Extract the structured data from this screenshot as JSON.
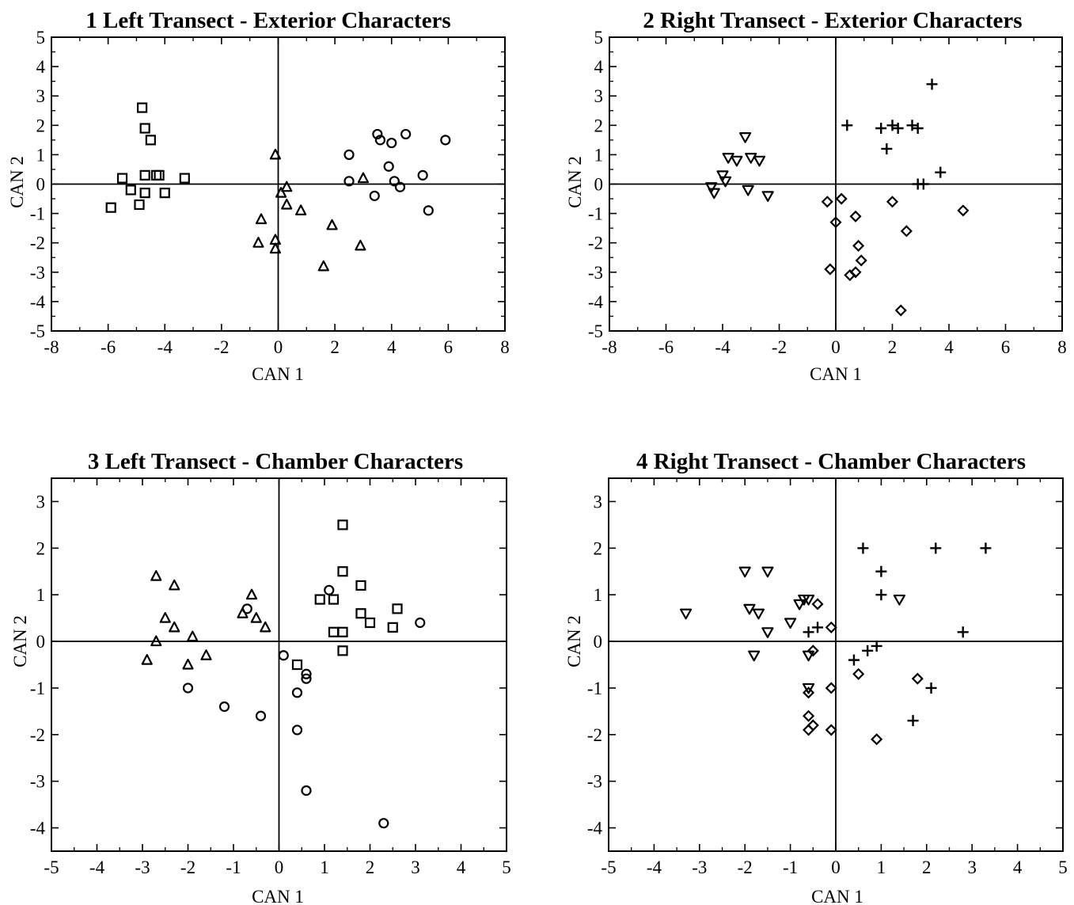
{
  "chart_data": [
    {
      "type": "scatter",
      "title": "1  Left Transect - Exterior Characters",
      "xlabel": "CAN 1",
      "ylabel": "CAN 2",
      "xlim": [
        -8,
        8
      ],
      "ylim": [
        -5,
        5
      ],
      "xticks": [
        -8,
        -6,
        -4,
        -2,
        0,
        2,
        4,
        6,
        8
      ],
      "yticks": [
        -5,
        -4,
        -3,
        -2,
        -1,
        0,
        1,
        2,
        3,
        4,
        5
      ],
      "grid": false,
      "legend": "none",
      "series": [
        {
          "marker": "square",
          "points": [
            [
              -4.8,
              2.6
            ],
            [
              -4.7,
              1.9
            ],
            [
              -4.5,
              1.5
            ],
            [
              -5.5,
              0.2
            ],
            [
              -4.7,
              0.3
            ],
            [
              -4.3,
              0.3
            ],
            [
              -4.2,
              0.3
            ],
            [
              -3.3,
              0.2
            ],
            [
              -5.2,
              -0.2
            ],
            [
              -4.7,
              -0.3
            ],
            [
              -4.0,
              -0.3
            ],
            [
              -4.9,
              -0.7
            ],
            [
              -5.9,
              -0.8
            ]
          ]
        },
        {
          "marker": "triangle",
          "points": [
            [
              -0.1,
              1.0
            ],
            [
              0.3,
              -0.1
            ],
            [
              0.1,
              -0.3
            ],
            [
              0.3,
              -0.7
            ],
            [
              0.8,
              -0.9
            ],
            [
              -0.6,
              -1.2
            ],
            [
              1.9,
              -1.4
            ],
            [
              -0.1,
              -1.9
            ],
            [
              -0.7,
              -2.0
            ],
            [
              -0.1,
              -2.2
            ],
            [
              2.9,
              -2.1
            ],
            [
              1.6,
              -2.8
            ],
            [
              3.0,
              0.2
            ]
          ]
        },
        {
          "marker": "circle",
          "points": [
            [
              3.5,
              1.7
            ],
            [
              3.6,
              1.5
            ],
            [
              4.5,
              1.7
            ],
            [
              4.0,
              1.4
            ],
            [
              5.9,
              1.5
            ],
            [
              2.5,
              1.0
            ],
            [
              3.9,
              0.6
            ],
            [
              5.1,
              0.3
            ],
            [
              2.5,
              0.1
            ],
            [
              4.1,
              0.1
            ],
            [
              4.3,
              -0.1
            ],
            [
              3.4,
              -0.4
            ],
            [
              5.3,
              -0.9
            ]
          ]
        }
      ]
    },
    {
      "type": "scatter",
      "title": "2  Right Transect - Exterior Characters",
      "xlabel": "CAN 1",
      "ylabel": "CAN 2",
      "xlim": [
        -8,
        8
      ],
      "ylim": [
        -5,
        5
      ],
      "xticks": [
        -8,
        -6,
        -4,
        -2,
        0,
        2,
        4,
        6,
        8
      ],
      "yticks": [
        -5,
        -4,
        -3,
        -2,
        -1,
        0,
        1,
        2,
        3,
        4,
        5
      ],
      "grid": false,
      "legend": "none",
      "series": [
        {
          "marker": "triangle-down",
          "points": [
            [
              -3.2,
              1.6
            ],
            [
              -3.8,
              0.9
            ],
            [
              -3.0,
              0.9
            ],
            [
              -3.5,
              0.8
            ],
            [
              -2.7,
              0.8
            ],
            [
              -4.0,
              0.3
            ],
            [
              -3.9,
              0.1
            ],
            [
              -4.4,
              -0.1
            ],
            [
              -4.3,
              -0.3
            ],
            [
              -3.1,
              -0.2
            ],
            [
              -2.4,
              -0.4
            ]
          ]
        },
        {
          "marker": "plus",
          "points": [
            [
              3.4,
              3.4
            ],
            [
              0.4,
              2.0
            ],
            [
              1.6,
              1.9
            ],
            [
              2.0,
              2.0
            ],
            [
              2.2,
              1.9
            ],
            [
              2.7,
              2.0
            ],
            [
              2.9,
              1.9
            ],
            [
              1.8,
              1.2
            ],
            [
              3.7,
              0.4
            ],
            [
              2.9,
              0.0
            ],
            [
              3.1,
              0.0
            ]
          ]
        },
        {
          "marker": "diamond",
          "points": [
            [
              0.2,
              -0.5
            ],
            [
              -0.3,
              -0.6
            ],
            [
              2.0,
              -0.6
            ],
            [
              4.5,
              -0.9
            ],
            [
              0.7,
              -1.1
            ],
            [
              0.0,
              -1.3
            ],
            [
              2.5,
              -1.6
            ],
            [
              0.8,
              -2.1
            ],
            [
              0.9,
              -2.6
            ],
            [
              -0.2,
              -2.9
            ],
            [
              0.7,
              -3.0
            ],
            [
              0.5,
              -3.1
            ],
            [
              2.3,
              -4.3
            ]
          ]
        }
      ]
    },
    {
      "type": "scatter",
      "title": "3  Left Transect - Chamber Characters",
      "xlabel": "CAN 1",
      "ylabel": "CAN 2",
      "xlim": [
        -5,
        5
      ],
      "ylim": [
        -4.5,
        3.5
      ],
      "xticks": [
        -5,
        -4,
        -3,
        -2,
        -1,
        0,
        1,
        2,
        3,
        4,
        5
      ],
      "yticks": [
        -4,
        -3,
        -2,
        -1,
        0,
        1,
        2,
        3
      ],
      "grid": false,
      "legend": "none",
      "series": [
        {
          "marker": "triangle",
          "points": [
            [
              -2.7,
              1.4
            ],
            [
              -2.3,
              1.2
            ],
            [
              -2.5,
              0.5
            ],
            [
              -2.3,
              0.3
            ],
            [
              -2.7,
              0.0
            ],
            [
              -1.9,
              0.1
            ],
            [
              -0.8,
              0.6
            ],
            [
              -0.6,
              1.0
            ],
            [
              -0.5,
              0.5
            ],
            [
              -0.3,
              0.3
            ],
            [
              -2.9,
              -0.4
            ],
            [
              -2.0,
              -0.5
            ],
            [
              -1.6,
              -0.3
            ]
          ]
        },
        {
          "marker": "square",
          "points": [
            [
              1.4,
              2.5
            ],
            [
              1.4,
              1.5
            ],
            [
              1.8,
              1.2
            ],
            [
              0.9,
              0.9
            ],
            [
              1.2,
              0.9
            ],
            [
              1.8,
              0.6
            ],
            [
              2.0,
              0.4
            ],
            [
              2.6,
              0.7
            ],
            [
              2.5,
              0.3
            ],
            [
              1.2,
              0.2
            ],
            [
              1.4,
              0.2
            ],
            [
              1.4,
              -0.2
            ],
            [
              0.4,
              -0.5
            ]
          ]
        },
        {
          "marker": "circle",
          "points": [
            [
              1.1,
              1.1
            ],
            [
              -0.7,
              0.7
            ],
            [
              3.1,
              0.4
            ],
            [
              0.1,
              -0.3
            ],
            [
              0.6,
              -0.7
            ],
            [
              0.6,
              -0.8
            ],
            [
              -2.0,
              -1.0
            ],
            [
              0.4,
              -1.1
            ],
            [
              -1.2,
              -1.4
            ],
            [
              -0.4,
              -1.6
            ],
            [
              0.4,
              -1.9
            ],
            [
              0.6,
              -3.2
            ],
            [
              2.3,
              -3.9
            ]
          ]
        }
      ]
    },
    {
      "type": "scatter",
      "title": "4  Right Transect - Chamber Characters",
      "xlabel": "CAN 1",
      "ylabel": "CAN 2",
      "xlim": [
        -5,
        5
      ],
      "ylim": [
        -4.5,
        3.5
      ],
      "xticks": [
        -5,
        -4,
        -3,
        -2,
        -1,
        0,
        1,
        2,
        3,
        4,
        5
      ],
      "yticks": [
        -4,
        -3,
        -2,
        -1,
        0,
        1,
        2,
        3
      ],
      "grid": false,
      "legend": "none",
      "series": [
        {
          "marker": "triangle-down",
          "points": [
            [
              -3.3,
              0.6
            ],
            [
              -2.0,
              1.5
            ],
            [
              -1.5,
              1.5
            ],
            [
              -1.9,
              0.7
            ],
            [
              -1.7,
              0.6
            ],
            [
              -1.0,
              0.4
            ],
            [
              -1.5,
              0.2
            ],
            [
              -0.8,
              0.8
            ],
            [
              -0.7,
              0.9
            ],
            [
              -0.6,
              0.9
            ],
            [
              -1.8,
              -0.3
            ],
            [
              -0.6,
              -0.3
            ],
            [
              -0.6,
              -1.0
            ],
            [
              1.4,
              0.9
            ]
          ]
        },
        {
          "marker": "plus",
          "points": [
            [
              0.6,
              2.0
            ],
            [
              2.2,
              2.0
            ],
            [
              3.3,
              2.0
            ],
            [
              1.0,
              1.5
            ],
            [
              1.0,
              1.0
            ],
            [
              -0.6,
              0.2
            ],
            [
              -0.4,
              0.3
            ],
            [
              2.8,
              0.2
            ],
            [
              0.7,
              -0.2
            ],
            [
              0.9,
              -0.1
            ],
            [
              0.4,
              -0.4
            ],
            [
              2.1,
              -1.0
            ],
            [
              1.7,
              -1.7
            ]
          ]
        },
        {
          "marker": "diamond",
          "points": [
            [
              -0.4,
              0.8
            ],
            [
              -0.1,
              0.3
            ],
            [
              -0.5,
              -0.2
            ],
            [
              0.5,
              -0.7
            ],
            [
              1.8,
              -0.8
            ],
            [
              -0.1,
              -1.0
            ],
            [
              -0.6,
              -1.1
            ],
            [
              -0.6,
              -1.6
            ],
            [
              -0.5,
              -1.8
            ],
            [
              -0.6,
              -1.9
            ],
            [
              -0.1,
              -1.9
            ],
            [
              0.9,
              -2.1
            ]
          ]
        }
      ]
    }
  ]
}
